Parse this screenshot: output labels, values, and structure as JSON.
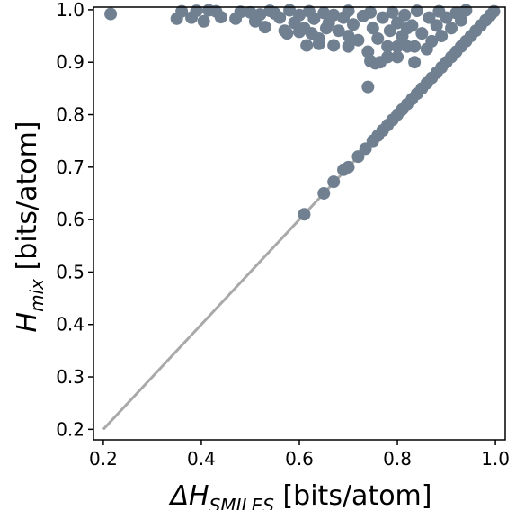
{
  "chart_data": {
    "type": "scatter",
    "xlabel": {
      "main": "ΔH",
      "sub": "SMILES",
      "unit": " [bits/atom]"
    },
    "ylabel": {
      "main": "H",
      "sub": "mix",
      "unit": " [bits/atom]"
    },
    "xlim": [
      0.18,
      1.02
    ],
    "ylim": [
      0.18,
      1.005
    ],
    "xticks": [
      0.2,
      0.4,
      0.6,
      0.8,
      1.0
    ],
    "xtick_labels": [
      "0.2",
      "0.4",
      "0.6",
      "0.8",
      "1.0"
    ],
    "yticks": [
      0.2,
      0.3,
      0.4,
      0.5,
      0.6,
      0.7,
      0.8,
      0.9,
      1.0
    ],
    "ytick_labels": [
      "0.2",
      "0.3",
      "0.4",
      "0.5",
      "0.6",
      "0.7",
      "0.8",
      "0.9",
      "1.0"
    ],
    "grid": false,
    "reference_line": {
      "x": [
        0.2,
        1.0
      ],
      "y": [
        0.2,
        1.0
      ]
    },
    "series": [
      {
        "marker_color": "#708090",
        "points": [
          [
            0.215,
            0.992
          ],
          [
            0.35,
            0.983
          ],
          [
            0.36,
            0.997
          ],
          [
            0.38,
            0.985
          ],
          [
            0.39,
            0.998
          ],
          [
            0.405,
            0.978
          ],
          [
            0.415,
            0.999
          ],
          [
            0.43,
            0.997
          ],
          [
            0.44,
            0.986
          ],
          [
            0.47,
            0.983
          ],
          [
            0.48,
            0.996
          ],
          [
            0.5,
            0.995
          ],
          [
            0.51,
            0.978
          ],
          [
            0.52,
            0.991
          ],
          [
            0.53,
            0.967
          ],
          [
            0.54,
            0.998
          ],
          [
            0.55,
            0.993
          ],
          [
            0.56,
            0.985
          ],
          [
            0.57,
            0.96
          ],
          [
            0.58,
            0.999
          ],
          [
            0.59,
            0.975
          ],
          [
            0.6,
            0.99
          ],
          [
            0.61,
            0.965
          ],
          [
            0.62,
            0.997
          ],
          [
            0.625,
            0.955
          ],
          [
            0.63,
            0.983
          ],
          [
            0.64,
            0.945
          ],
          [
            0.65,
            0.994
          ],
          [
            0.655,
            0.965
          ],
          [
            0.66,
            0.975
          ],
          [
            0.67,
            0.99
          ],
          [
            0.68,
            0.96
          ],
          [
            0.69,
            0.985
          ],
          [
            0.7,
            0.95
          ],
          [
            0.7,
            0.998
          ],
          [
            0.71,
            0.972
          ],
          [
            0.72,
            0.942
          ],
          [
            0.73,
            0.988
          ],
          [
            0.74,
            0.92
          ],
          [
            0.745,
            0.995
          ],
          [
            0.75,
            0.965
          ],
          [
            0.76,
            0.945
          ],
          [
            0.765,
            0.9
          ],
          [
            0.77,
            0.985
          ],
          [
            0.78,
            0.93
          ],
          [
            0.785,
            0.96
          ],
          [
            0.79,
            0.995
          ],
          [
            0.8,
            0.91
          ],
          [
            0.8,
            0.975
          ],
          [
            0.81,
            0.95
          ],
          [
            0.815,
            0.99
          ],
          [
            0.82,
            0.93
          ],
          [
            0.83,
            0.97
          ],
          [
            0.835,
            0.9
          ],
          [
            0.84,
            0.998
          ],
          [
            0.85,
            0.955
          ],
          [
            0.86,
            0.925
          ],
          [
            0.865,
            0.985
          ],
          [
            0.87,
            0.94
          ],
          [
            0.88,
            0.97
          ],
          [
            0.885,
            0.997
          ],
          [
            0.89,
            0.95
          ],
          [
            0.9,
            0.985
          ],
          [
            0.91,
            0.965
          ],
          [
            0.92,
            0.994
          ],
          [
            0.93,
            0.98
          ],
          [
            0.94,
            0.999
          ],
          [
            0.615,
            0.932
          ],
          [
            0.64,
            0.935
          ],
          [
            0.67,
            0.932
          ],
          [
            0.7,
            0.93
          ],
          [
            0.745,
            0.902
          ],
          [
            0.755,
            0.898
          ],
          [
            0.74,
            0.853
          ],
          [
            0.8,
            0.93
          ],
          [
            0.835,
            0.93
          ],
          [
            0.575,
            0.955
          ],
          [
            0.6,
            0.958
          ],
          [
            0.78,
            0.91
          ],
          [
            0.82,
            0.965
          ],
          [
            0.61,
            0.61
          ],
          [
            0.65,
            0.65
          ],
          [
            0.67,
            0.672
          ],
          [
            0.69,
            0.695
          ],
          [
            0.7,
            0.7
          ],
          [
            0.72,
            0.72
          ],
          [
            0.735,
            0.735
          ],
          [
            0.75,
            0.75
          ],
          [
            0.76,
            0.76
          ],
          [
            0.77,
            0.77
          ],
          [
            0.78,
            0.78
          ],
          [
            0.79,
            0.79
          ],
          [
            0.8,
            0.8
          ],
          [
            0.81,
            0.81
          ],
          [
            0.82,
            0.82
          ],
          [
            0.83,
            0.83
          ],
          [
            0.84,
            0.84
          ],
          [
            0.85,
            0.85
          ],
          [
            0.86,
            0.86
          ],
          [
            0.87,
            0.87
          ],
          [
            0.88,
            0.88
          ],
          [
            0.89,
            0.89
          ],
          [
            0.9,
            0.9
          ],
          [
            0.91,
            0.91
          ],
          [
            0.92,
            0.92
          ],
          [
            0.93,
            0.93
          ],
          [
            0.94,
            0.94
          ],
          [
            0.95,
            0.95
          ],
          [
            0.96,
            0.96
          ],
          [
            0.97,
            0.97
          ],
          [
            0.98,
            0.98
          ],
          [
            0.99,
            0.99
          ],
          [
            0.997,
            0.997
          ]
        ]
      }
    ]
  }
}
